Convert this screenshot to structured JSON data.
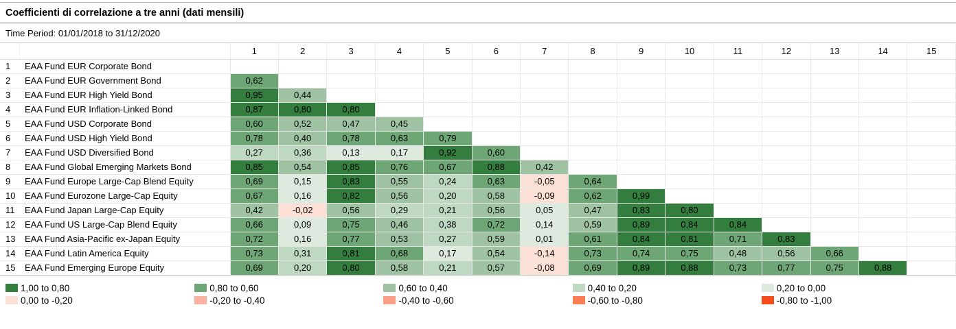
{
  "header": {
    "title": "Coefficienti di correlazione a tre anni (dati mensili)",
    "time_period": "Time Period: 01/01/2018 to 31/12/2020"
  },
  "chart_data": {
    "type": "heatmap",
    "title": "Coefficienti di correlazione a tre anni (dati mensili)",
    "subtitle": "Time Period: 01/01/2018 to 31/12/2020",
    "value_format": "comma_decimal_2dp",
    "column_headers": [
      "1",
      "2",
      "3",
      "4",
      "5",
      "6",
      "7",
      "8",
      "9",
      "10",
      "11",
      "12",
      "13",
      "14",
      "15"
    ],
    "rows": [
      {
        "index": "1",
        "label": "EAA Fund EUR Corporate Bond",
        "values": []
      },
      {
        "index": "2",
        "label": "EAA Fund EUR Government Bond",
        "values": [
          0.62
        ]
      },
      {
        "index": "3",
        "label": "EAA Fund EUR High Yield Bond",
        "values": [
          0.95,
          0.44
        ]
      },
      {
        "index": "4",
        "label": "EAA Fund EUR Inflation-Linked Bond",
        "values": [
          0.87,
          0.8,
          0.8
        ]
      },
      {
        "index": "5",
        "label": "EAA Fund USD Corporate Bond",
        "values": [
          0.6,
          0.52,
          0.47,
          0.45
        ]
      },
      {
        "index": "6",
        "label": "EAA Fund USD High Yield Bond",
        "values": [
          0.78,
          0.4,
          0.78,
          0.63,
          0.79
        ]
      },
      {
        "index": "7",
        "label": "EAA Fund USD Diversified Bond",
        "values": [
          0.27,
          0.36,
          0.13,
          0.17,
          0.92,
          0.6
        ]
      },
      {
        "index": "8",
        "label": "EAA Fund Global Emerging Markets Bond",
        "values": [
          0.85,
          0.54,
          0.85,
          0.76,
          0.67,
          0.88,
          0.42
        ]
      },
      {
        "index": "9",
        "label": "EAA Fund Europe Large-Cap Blend Equity",
        "values": [
          0.69,
          0.15,
          0.83,
          0.55,
          0.24,
          0.63,
          -0.05,
          0.64
        ]
      },
      {
        "index": "10",
        "label": "EAA Fund Eurozone Large-Cap Equity",
        "values": [
          0.67,
          0.16,
          0.82,
          0.56,
          0.2,
          0.58,
          -0.09,
          0.62,
          0.99
        ]
      },
      {
        "index": "11",
        "label": "EAA Fund Japan Large-Cap Equity",
        "values": [
          0.42,
          -0.02,
          0.56,
          0.29,
          0.21,
          0.56,
          0.05,
          0.47,
          0.83,
          0.8
        ]
      },
      {
        "index": "12",
        "label": "EAA Fund US Large-Cap Blend Equity",
        "values": [
          0.66,
          0.09,
          0.75,
          0.46,
          0.38,
          0.72,
          0.14,
          0.59,
          0.89,
          0.84,
          0.84
        ]
      },
      {
        "index": "13",
        "label": "EAA Fund Asia-Pacific ex-Japan Equity",
        "values": [
          0.72,
          0.16,
          0.77,
          0.53,
          0.27,
          0.59,
          0.01,
          0.61,
          0.84,
          0.81,
          0.71,
          0.83
        ]
      },
      {
        "index": "14",
        "label": "EAA Fund Latin America Equity",
        "values": [
          0.73,
          0.31,
          0.81,
          0.68,
          0.17,
          0.54,
          -0.14,
          0.73,
          0.74,
          0.75,
          0.48,
          0.56,
          0.66
        ]
      },
      {
        "index": "15",
        "label": "EAA Fund Emerging Europe Equity",
        "values": [
          0.69,
          0.2,
          0.8,
          0.58,
          0.21,
          0.57,
          -0.08,
          0.69,
          0.89,
          0.88,
          0.73,
          0.77,
          0.75,
          0.88
        ]
      }
    ],
    "color_scale": {
      "thresholds": [
        0.8,
        0.6,
        0.4,
        0.2,
        0.0,
        -0.2,
        -0.4,
        -0.6,
        -0.8
      ],
      "colors": [
        "#337e3f",
        "#6fa676",
        "#9fc2a2",
        "#bfd8c1",
        "#dfeade",
        "#fcdfd5",
        "#fab3a0",
        "#f9a086",
        "#f97e55",
        "#f44c1a"
      ]
    },
    "legend_position": "bottom",
    "grid": true
  },
  "legend": {
    "items": [
      {
        "label": "1,00 to 0,80",
        "color": "#337e3f"
      },
      {
        "label": "0,80 to 0,60",
        "color": "#6fa676"
      },
      {
        "label": "0,60 to 0,40",
        "color": "#9fc2a2"
      },
      {
        "label": "0,40 to 0,20",
        "color": "#bfd8c1"
      },
      {
        "label": "0,20 to 0,00",
        "color": "#dfeade"
      },
      {
        "label": "0,00 to -0,20",
        "color": "#fcdfd5"
      },
      {
        "label": "-0,20 to -0,40",
        "color": "#fab3a0"
      },
      {
        "label": "-0,40 to -0,60",
        "color": "#f9a086"
      },
      {
        "label": "-0,60 to -0,80",
        "color": "#f97e55"
      },
      {
        "label": "-0,80 to -1,00",
        "color": "#f44c1a"
      }
    ]
  }
}
